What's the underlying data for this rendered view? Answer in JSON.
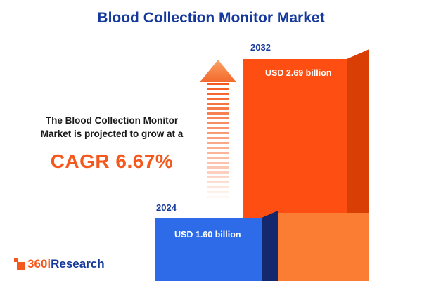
{
  "title": "Blood Collection Monitor Market",
  "description": {
    "line1": "The Blood Collection Monitor",
    "line2": "Market is projected to grow at a",
    "cagr": "CAGR 6.67%"
  },
  "chart_data": {
    "type": "bar",
    "title": "Blood Collection Monitor Market",
    "categories": [
      "2024",
      "2032"
    ],
    "values": [
      1.6,
      2.69
    ],
    "unit": "USD billion",
    "value_labels": [
      "USD 1.60 billion",
      "USD 2.69 billion"
    ],
    "cagr_text": "CAGR 6.67%",
    "growth_rate": "6.67%",
    "legend_position": "none",
    "grid": false,
    "colors": {
      "bar_2024_front": "#2e6be8",
      "bar_2024_side": "#15286e",
      "bar_2032_front": "#fe4e11",
      "bar_2032_side": "#d93e04",
      "bar_2032_light": "#fb7c33",
      "accent_orange": "#f4581c",
      "title_blue": "#16399e"
    }
  },
  "logo": {
    "prefix": "360i",
    "suffix": "Research"
  }
}
